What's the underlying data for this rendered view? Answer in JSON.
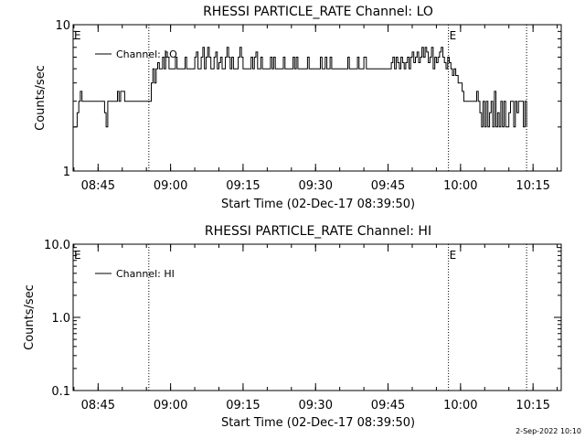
{
  "footer_timestamp": "2-Sep-2022 10:10",
  "chart_data": [
    {
      "type": "line",
      "title": "RHESSI PARTICLE_RATE Channel: LO",
      "xlabel": "Start Time (02-Dec-17 08:39:50)",
      "ylabel": "Counts/sec",
      "yscale": "log",
      "ylim": [
        1,
        10
      ],
      "xlim": [
        "08:39:50",
        "10:20:50"
      ],
      "x_ticks": [
        "08:45",
        "09:00",
        "09:15",
        "09:30",
        "09:45",
        "10:00",
        "10:15"
      ],
      "y_ticks": [
        "1",
        "10"
      ],
      "legend": "Channel: LO",
      "legend_position": "top-left",
      "event_lines": [
        "08:55:30",
        "09:57:30",
        "10:13:40"
      ],
      "event_labels": [
        {
          "time": "08:39:50",
          "text": "E"
        },
        {
          "time": "09:57:30",
          "text": "E"
        }
      ],
      "series": [
        {
          "name": "Channel: LO",
          "x": [
            "08:39:50",
            "08:40:20",
            "08:40:40",
            "08:41:00",
            "08:41:20",
            "08:41:40",
            "08:42:00",
            "08:43:00",
            "08:45:00",
            "08:46:00",
            "08:46:20",
            "08:46:40",
            "08:47:00",
            "08:48:00",
            "08:48:40",
            "08:49:00",
            "08:49:20",
            "08:49:40",
            "08:50:30",
            "08:52:00",
            "08:53:00",
            "08:54:00",
            "08:55:00",
            "08:55:40",
            "08:56:00",
            "08:56:20",
            "08:56:40",
            "08:57:00",
            "08:57:20",
            "08:57:40",
            "08:58:00",
            "08:58:20",
            "08:58:40",
            "08:59:00",
            "08:59:20",
            "08:59:40",
            "09:00:00",
            "09:00:20",
            "09:00:40",
            "09:01:00",
            "09:01:20",
            "09:01:40",
            "09:02:00",
            "09:02:20",
            "09:02:40",
            "09:03:00",
            "09:03:20",
            "09:03:40",
            "09:04:00",
            "09:04:20",
            "09:04:40",
            "09:05:00",
            "09:05:20",
            "09:05:40",
            "09:06:00",
            "09:06:20",
            "09:06:40",
            "09:07:00",
            "09:07:20",
            "09:07:40",
            "09:08:00",
            "09:08:20",
            "09:08:40",
            "09:09:00",
            "09:09:20",
            "09:09:40",
            "09:10:00",
            "09:10:20",
            "09:10:40",
            "09:11:00",
            "09:11:20",
            "09:11:40",
            "09:12:00",
            "09:12:20",
            "09:12:40",
            "09:13:00",
            "09:13:20",
            "09:13:40",
            "09:14:00",
            "09:14:20",
            "09:14:40",
            "09:15:00",
            "09:15:20",
            "09:15:40",
            "09:16:00",
            "09:16:20",
            "09:16:40",
            "09:17:00",
            "09:17:20",
            "09:17:40",
            "09:18:00",
            "09:18:20",
            "09:18:40",
            "09:19:00",
            "09:19:20",
            "09:19:40",
            "09:20:00",
            "09:20:20",
            "09:20:40",
            "09:21:00",
            "09:21:20",
            "09:21:40",
            "09:22:00",
            "09:22:20",
            "09:22:40",
            "09:23:00",
            "09:23:20",
            "09:23:40",
            "09:24:00",
            "09:24:20",
            "09:24:40",
            "09:25:00",
            "09:25:20",
            "09:25:40",
            "09:26:00",
            "09:26:20",
            "09:26:40",
            "09:27:00",
            "09:27:20",
            "09:27:40",
            "09:28:00",
            "09:28:20",
            "09:28:40",
            "09:29:00",
            "09:29:20",
            "09:29:40",
            "09:30:00",
            "09:30:20",
            "09:30:40",
            "09:31:00",
            "09:31:20",
            "09:31:40",
            "09:32:00",
            "09:32:20",
            "09:32:40",
            "09:33:00",
            "09:33:20",
            "09:33:40",
            "09:34:00",
            "09:34:20",
            "09:34:40",
            "09:35:00",
            "09:35:20",
            "09:35:40",
            "09:36:00",
            "09:36:20",
            "09:36:40",
            "09:37:00",
            "09:37:20",
            "09:37:40",
            "09:38:00",
            "09:38:20",
            "09:38:40",
            "09:39:00",
            "09:39:20",
            "09:39:40",
            "09:40:00",
            "09:40:30",
            "09:41:00",
            "09:42:00",
            "09:42:30",
            "09:43:00",
            "09:43:30",
            "09:44:00",
            "09:44:20",
            "09:44:40",
            "09:45:00",
            "09:45:20",
            "09:45:40",
            "09:46:00",
            "09:46:20",
            "09:46:40",
            "09:47:00",
            "09:47:20",
            "09:47:40",
            "09:48:00",
            "09:48:20",
            "09:48:40",
            "09:49:00",
            "09:49:20",
            "09:49:40",
            "09:50:00",
            "09:50:20",
            "09:50:40",
            "09:51:00",
            "09:51:20",
            "09:51:40",
            "09:52:00",
            "09:52:20",
            "09:52:40",
            "09:53:00",
            "09:53:20",
            "09:53:40",
            "09:54:00",
            "09:54:20",
            "09:54:40",
            "09:55:00",
            "09:55:20",
            "09:55:40",
            "09:56:00",
            "09:56:20",
            "09:56:40",
            "09:57:00",
            "09:57:20",
            "09:57:40",
            "09:58:00",
            "09:58:20",
            "09:58:40",
            "09:59:00",
            "09:59:30",
            "10:00:00",
            "10:00:20",
            "10:00:40",
            "10:01:00",
            "10:01:30",
            "10:02:00",
            "10:02:30",
            "10:03:00",
            "10:03:20",
            "10:03:40",
            "10:04:00",
            "10:04:20",
            "10:04:40",
            "10:05:00",
            "10:05:20",
            "10:05:40",
            "10:06:00",
            "10:06:20",
            "10:06:40",
            "10:07:00",
            "10:07:20",
            "10:07:40",
            "10:08:00",
            "10:08:20",
            "10:08:40",
            "10:09:00",
            "10:09:20",
            "10:09:40",
            "10:10:00",
            "10:10:20",
            "10:10:40",
            "10:11:00",
            "10:11:20",
            "10:11:40",
            "10:12:00",
            "10:12:20",
            "10:12:40",
            "10:13:00",
            "10:13:20",
            "10:13:40"
          ],
          "values": [
            2.0,
            2.0,
            2.5,
            3.0,
            3.5,
            3.0,
            3.0,
            3.0,
            3.0,
            3.0,
            2.5,
            2.0,
            3.0,
            3.0,
            3.0,
            3.5,
            3.0,
            3.5,
            3.0,
            3.0,
            3.0,
            3.0,
            3.0,
            3.0,
            4.0,
            5.0,
            4.0,
            5.0,
            5.5,
            5.0,
            5.0,
            6.0,
            5.0,
            6.5,
            6.0,
            5.0,
            5.0,
            5.0,
            5.0,
            6.0,
            5.0,
            5.0,
            5.0,
            5.0,
            5.0,
            6.0,
            5.0,
            5.0,
            5.0,
            5.0,
            5.0,
            6.0,
            6.5,
            5.0,
            5.0,
            6.0,
            7.0,
            5.0,
            6.0,
            7.0,
            6.0,
            5.0,
            5.0,
            6.0,
            6.5,
            5.0,
            5.5,
            6.0,
            5.0,
            5.0,
            6.0,
            7.0,
            6.0,
            5.0,
            6.0,
            5.0,
            5.0,
            5.0,
            6.0,
            7.0,
            6.0,
            5.0,
            5.0,
            5.0,
            5.0,
            5.0,
            6.0,
            5.0,
            6.0,
            6.5,
            5.0,
            5.0,
            6.0,
            5.0,
            5.0,
            5.0,
            5.0,
            5.0,
            6.0,
            5.0,
            6.0,
            5.0,
            5.0,
            5.0,
            5.0,
            5.0,
            6.0,
            5.0,
            5.0,
            5.0,
            5.0,
            5.0,
            6.0,
            5.0,
            6.0,
            5.0,
            5.0,
            5.0,
            5.0,
            5.0,
            5.0,
            6.0,
            5.0,
            5.0,
            5.0,
            5.0,
            5.0,
            5.0,
            5.0,
            6.0,
            5.0,
            5.0,
            6.0,
            5.0,
            5.0,
            6.0,
            5.0,
            5.0,
            5.0,
            5.0,
            5.0,
            5.0,
            5.0,
            5.0,
            5.0,
            5.0,
            6.0,
            5.0,
            5.0,
            5.0,
            5.0,
            5.0,
            6.0,
            5.0,
            5.0,
            5.0,
            6.0,
            5.0,
            5.0,
            5.0,
            5.0,
            5.0,
            5.0,
            5.0,
            5.0,
            5.0,
            5.0,
            5.0,
            5.5,
            6.0,
            5.0,
            6.0,
            5.5,
            5.0,
            6.0,
            5.5,
            5.0,
            5.5,
            6.0,
            5.0,
            6.0,
            6.5,
            5.5,
            6.0,
            6.5,
            5.5,
            6.0,
            7.0,
            6.0,
            7.0,
            6.5,
            5.5,
            6.0,
            7.0,
            5.0,
            6.0,
            5.5,
            6.0,
            6.5,
            7.0,
            6.0,
            5.5,
            5.0,
            6.0,
            5.5,
            5.0,
            4.5,
            5.0,
            4.5,
            4.0,
            4.0,
            3.5,
            3.0,
            3.0,
            3.0,
            3.0,
            3.0,
            3.0,
            3.5,
            3.0,
            2.5,
            2.0,
            3.0,
            2.0,
            3.0,
            2.0,
            2.5,
            3.0,
            2.0,
            3.5,
            2.0,
            2.5,
            2.0,
            3.0,
            2.0,
            3.0,
            2.0,
            2.0,
            2.5,
            3.0,
            3.0,
            2.0,
            3.0,
            2.5,
            3.0,
            3.0,
            3.0,
            2.0,
            3.0,
            2.0
          ]
        }
      ]
    },
    {
      "type": "line",
      "title": "RHESSI PARTICLE_RATE Channel: HI",
      "xlabel": "Start Time (02-Dec-17 08:39:50)",
      "ylabel": "Counts/sec",
      "yscale": "log",
      "ylim": [
        0.1,
        10
      ],
      "xlim": [
        "08:39:50",
        "10:20:50"
      ],
      "x_ticks": [
        "08:45",
        "09:00",
        "09:15",
        "09:30",
        "09:45",
        "10:00",
        "10:15"
      ],
      "y_ticks": [
        "0.1",
        "1.0",
        "10.0"
      ],
      "legend": "Channel: HI",
      "legend_position": "top-left",
      "event_lines": [
        "08:55:30",
        "09:57:30",
        "10:13:40"
      ],
      "event_labels": [
        {
          "time": "08:39:50",
          "text": "E"
        },
        {
          "time": "09:57:30",
          "text": "E"
        }
      ],
      "series": [
        {
          "name": "Channel: HI",
          "x": [],
          "values": []
        }
      ]
    }
  ]
}
